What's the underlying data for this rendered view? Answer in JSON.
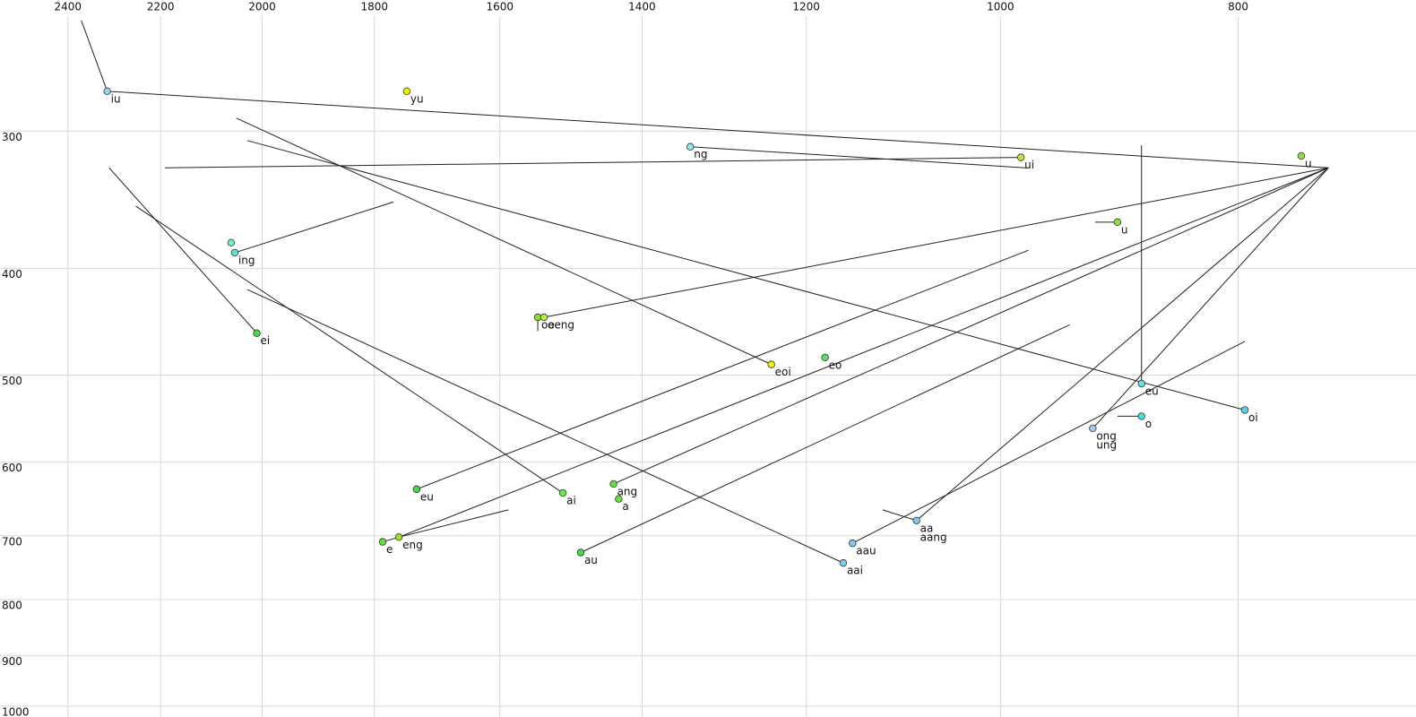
{
  "chart_data": {
    "type": "scatter",
    "xscale": "log",
    "yscale": "log",
    "grid": true,
    "xlim": [
      2558,
      677
    ],
    "ylim": [
      228,
      1023
    ],
    "xticks": [
      2400,
      2200,
      2000,
      1800,
      1600,
      1400,
      1200,
      1000,
      800
    ],
    "yticks": [
      300,
      400,
      500,
      600,
      700,
      800,
      900,
      1000
    ],
    "line_color": "#222222",
    "points": [
      {
        "labels": [
          "iu"
        ],
        "x": 2313,
        "y": 276,
        "color": "#a0d0f0"
      },
      {
        "labels": [
          "yu"
        ],
        "x": 1746,
        "y": 276,
        "color": "#f0f000"
      },
      {
        "labels": [
          "ng"
        ],
        "x": 1338,
        "y": 310,
        "color": "#90e8f0"
      },
      {
        "labels": [
          "ui"
        ],
        "x": 981,
        "y": 317,
        "color": "#b8e840"
      },
      {
        "labels": [
          "u"
        ],
        "x": 754,
        "y": 316,
        "color": "#90e040"
      },
      {
        "labels": [
          "u"
        ],
        "x": 896,
        "y": 363,
        "color": "#90e040"
      },
      {
        "labels": [],
        "x": 2059,
        "y": 379,
        "color": "#70f0c0"
      },
      {
        "labels": [
          "ing"
        ],
        "x": 2052,
        "y": 387,
        "color": "#60e0d0"
      },
      {
        "labels": [
          "ei"
        ],
        "x": 2010,
        "y": 458,
        "color": "#40e040"
      },
      {
        "labels": [
          "oe"
        ],
        "x": 1544,
        "y": 443,
        "color": "#90e020"
      },
      {
        "labels": [
          "oeng"
        ],
        "x": 1535,
        "y": 443,
        "color": "#b0f040"
      },
      {
        "labels": [
          "eoi"
        ],
        "x": 1240,
        "y": 489,
        "color": "#f0f000"
      },
      {
        "labels": [
          "eo"
        ],
        "x": 1179,
        "y": 482,
        "color": "#60e060"
      },
      {
        "labels": [
          "eu"
        ],
        "x": 876,
        "y": 509,
        "color": "#60e8e0"
      },
      {
        "labels": [
          "oi"
        ],
        "x": 795,
        "y": 538,
        "color": "#60d0f0"
      },
      {
        "labels": [
          "o"
        ],
        "x": 876,
        "y": 545,
        "color": "#40e0e0"
      },
      {
        "labels": [
          "ong",
          "ung"
        ],
        "x": 917,
        "y": 559,
        "color": "#a0c8f0"
      },
      {
        "labels": [
          "eu"
        ],
        "x": 1730,
        "y": 635,
        "color": "#40e040"
      },
      {
        "labels": [
          "ai"
        ],
        "x": 1508,
        "y": 640,
        "color": "#60f040"
      },
      {
        "labels": [
          "ang"
        ],
        "x": 1438,
        "y": 628,
        "color": "#60e040"
      },
      {
        "labels": [
          "a"
        ],
        "x": 1431,
        "y": 648,
        "color": "#60e040"
      },
      {
        "labels": [
          "eng"
        ],
        "x": 1759,
        "y": 702,
        "color": "#a0e020"
      },
      {
        "labels": [
          "e"
        ],
        "x": 1786,
        "y": 709,
        "color": "#60e040"
      },
      {
        "labels": [
          "au"
        ],
        "x": 1483,
        "y": 725,
        "color": "#40e040"
      },
      {
        "labels": [
          "aau"
        ],
        "x": 1149,
        "y": 711,
        "color": "#80c8f0"
      },
      {
        "labels": [
          "aai"
        ],
        "x": 1159,
        "y": 741,
        "color": "#80c8f0"
      },
      {
        "labels": [
          "aa",
          "aang"
        ],
        "x": 1082,
        "y": 678,
        "color": "#80c8f0"
      }
    ],
    "segments": [
      [
        2370,
        238,
        2313,
        276
      ],
      [
        2313,
        276,
        735,
        324
      ],
      [
        2191,
        324,
        981,
        317
      ],
      [
        1338,
        310,
        976,
        324
      ],
      [
        2049,
        292,
        1240,
        489
      ],
      [
        2028,
        306,
        795,
        538
      ],
      [
        2309,
        324,
        2010,
        458
      ],
      [
        2252,
        351,
        1508,
        640
      ],
      [
        2028,
        418,
        1159,
        741
      ],
      [
        2052,
        387,
        1768,
        348
      ],
      [
        1535,
        443,
        735,
        324
      ],
      [
        1730,
        635,
        974,
        385
      ],
      [
        1759,
        702,
        735,
        324
      ],
      [
        1759,
        702,
        1587,
        663
      ],
      [
        1438,
        628,
        735,
        324
      ],
      [
        1483,
        725,
        937,
        450
      ],
      [
        1149,
        711,
        795,
        466
      ],
      [
        1082,
        678,
        1117,
        663
      ],
      [
        1082,
        678,
        735,
        324
      ],
      [
        917,
        559,
        735,
        324
      ],
      [
        876,
        309,
        876,
        509
      ],
      [
        915,
        363,
        896,
        363
      ],
      [
        896,
        545,
        876,
        545
      ],
      [
        1544,
        443,
        1544,
        456
      ],
      [
        1786,
        709,
        1759,
        702
      ]
    ]
  }
}
